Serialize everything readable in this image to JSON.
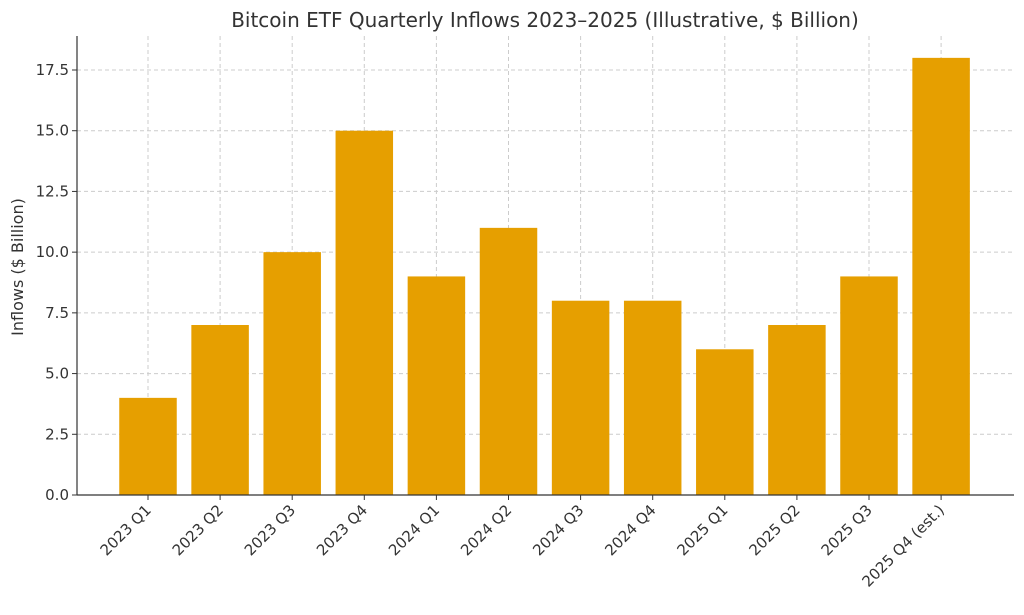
{
  "chart_data": {
    "type": "bar",
    "title": "Bitcoin ETF Quarterly Inflows 2023–2025 (Illustrative, $ Billion)",
    "xlabel": "",
    "ylabel": "Inflows ($ Billion)",
    "categories": [
      "2023 Q1",
      "2023 Q2",
      "2023 Q3",
      "2023 Q4",
      "2024 Q1",
      "2024 Q2",
      "2024 Q3",
      "2024 Q4",
      "2025 Q1",
      "2025 Q2",
      "2025 Q3",
      "2025 Q4 (est.)"
    ],
    "values": [
      4,
      7,
      10,
      15,
      9,
      11,
      8,
      8,
      6,
      7,
      9,
      18
    ],
    "ylim": [
      0,
      18.9
    ],
    "yticks": [
      0.0,
      2.5,
      5.0,
      7.5,
      10.0,
      12.5,
      15.0,
      17.5
    ],
    "ytick_labels": [
      "0.0",
      "2.5",
      "5.0",
      "7.5",
      "10.0",
      "12.5",
      "15.0",
      "17.5"
    ],
    "grid": true,
    "bar_color": "#E69F00"
  }
}
